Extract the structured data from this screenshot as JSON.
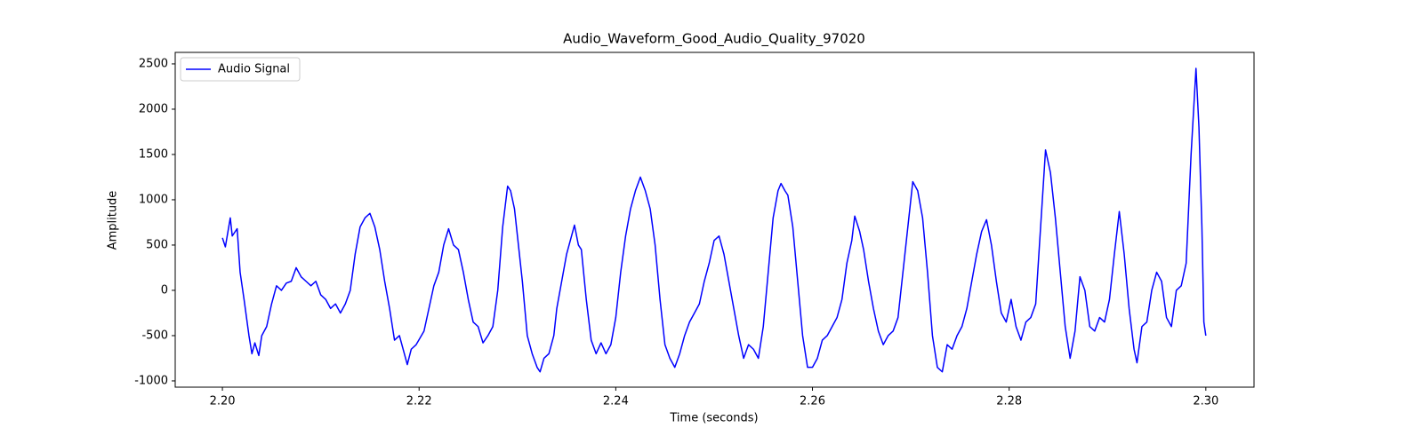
{
  "chart_data": {
    "type": "line",
    "title": "Audio_Waveform_Good_Audio_Quality_97020",
    "x_label": "Time (seconds)",
    "y_label": "Amplitude",
    "x": [
      2.2,
      2.2003,
      2.2008,
      2.201,
      2.2015,
      2.2018,
      2.2022,
      2.2027,
      2.203,
      2.2033,
      2.2037,
      2.204,
      2.2045,
      2.205,
      2.2055,
      2.206,
      2.2065,
      2.207,
      2.2075,
      2.208,
      2.2085,
      2.209,
      2.2095,
      2.21,
      2.2105,
      2.211,
      2.2115,
      2.212,
      2.2125,
      2.213,
      2.2135,
      2.214,
      2.2145,
      2.215,
      2.2155,
      2.216,
      2.2165,
      2.217,
      2.2175,
      2.218,
      2.2185,
      2.2188,
      2.2192,
      2.2197,
      2.2205,
      2.221,
      2.2215,
      2.222,
      2.2225,
      2.223,
      2.2235,
      2.224,
      2.2245,
      2.225,
      2.2255,
      2.226,
      2.2265,
      2.227,
      2.2275,
      2.228,
      2.2285,
      2.229,
      2.2293,
      2.2297,
      2.23,
      2.2305,
      2.231,
      2.2315,
      2.232,
      2.2323,
      2.2327,
      2.2332,
      2.2337,
      2.234,
      2.2345,
      2.235,
      2.2355,
      2.2358,
      2.2362,
      2.2365,
      2.237,
      2.2375,
      2.238,
      2.2385,
      2.239,
      2.2395,
      2.24,
      2.2405,
      2.241,
      2.2415,
      2.242,
      2.2425,
      2.243,
      2.2435,
      2.244,
      2.2445,
      2.245,
      2.2455,
      2.246,
      2.2465,
      2.247,
      2.2475,
      2.248,
      2.2485,
      2.249,
      2.2495,
      2.25,
      2.2505,
      2.251,
      2.2515,
      2.252,
      2.2525,
      2.253,
      2.2535,
      2.254,
      2.2545,
      2.255,
      2.2555,
      2.256,
      2.2565,
      2.2568,
      2.2572,
      2.2575,
      2.258,
      2.2585,
      2.259,
      2.2595,
      2.26,
      2.2605,
      2.261,
      2.2615,
      2.262,
      2.2625,
      2.263,
      2.2635,
      2.264,
      2.2643,
      2.2648,
      2.2652,
      2.2657,
      2.2662,
      2.2667,
      2.2672,
      2.2677,
      2.2682,
      2.2687,
      2.2692,
      2.2697,
      2.2702,
      2.2707,
      2.2712,
      2.2717,
      2.2722,
      2.2727,
      2.2732,
      2.2737,
      2.2742,
      2.2747,
      2.2752,
      2.2757,
      2.2762,
      2.2767,
      2.2772,
      2.2777,
      2.2782,
      2.2787,
      2.2792,
      2.2797,
      2.2802,
      2.2807,
      2.2812,
      2.2817,
      2.2822,
      2.2827,
      2.2832,
      2.2837,
      2.2842,
      2.2847,
      2.2852,
      2.2857,
      2.2862,
      2.2867,
      2.2872,
      2.2877,
      2.2882,
      2.2887,
      2.2892,
      2.2897,
      2.2902,
      2.2907,
      2.2912,
      2.2917,
      2.2922,
      2.2927,
      2.293,
      2.2935,
      2.294,
      2.2945,
      2.295,
      2.2955,
      2.296,
      2.2965,
      2.297,
      2.2975,
      2.298,
      2.2985,
      2.299,
      2.2993,
      2.2996,
      2.2998,
      2.3
    ],
    "series": [
      {
        "name": "Audio Signal",
        "color": "#0000ff",
        "values": [
          580,
          480,
          800,
          600,
          680,
          200,
          -100,
          -500,
          -700,
          -580,
          -720,
          -500,
          -400,
          -150,
          50,
          0,
          80,
          100,
          250,
          150,
          100,
          50,
          100,
          -50,
          -100,
          -200,
          -150,
          -250,
          -150,
          0,
          400,
          700,
          800,
          850,
          700,
          450,
          100,
          -200,
          -550,
          -500,
          -700,
          -820,
          -650,
          -600,
          -450,
          -200,
          50,
          200,
          500,
          680,
          500,
          450,
          200,
          -100,
          -350,
          -400,
          -580,
          -500,
          -400,
          0,
          700,
          1150,
          1100,
          900,
          600,
          100,
          -500,
          -700,
          -850,
          -900,
          -750,
          -700,
          -500,
          -200,
          100,
          400,
          600,
          720,
          500,
          450,
          -100,
          -550,
          -700,
          -580,
          -700,
          -600,
          -300,
          200,
          600,
          900,
          1100,
          1250,
          1100,
          900,
          500,
          -100,
          -600,
          -750,
          -850,
          -700,
          -500,
          -350,
          -250,
          -150,
          100,
          300,
          550,
          600,
          400,
          100,
          -200,
          -500,
          -750,
          -600,
          -650,
          -750,
          -400,
          200,
          800,
          1100,
          1180,
          1100,
          1050,
          700,
          100,
          -500,
          -850,
          -850,
          -750,
          -550,
          -500,
          -400,
          -300,
          -100,
          300,
          550,
          820,
          650,
          450,
          100,
          -200,
          -450,
          -600,
          -500,
          -450,
          -300,
          200,
          700,
          1200,
          1100,
          800,
          200,
          -500,
          -850,
          -900,
          -600,
          -650,
          -500,
          -400,
          -200,
          100,
          400,
          650,
          780,
          500,
          100,
          -250,
          -350,
          -100,
          -400,
          -550,
          -350,
          -300,
          -150,
          700,
          1550,
          1300,
          800,
          200,
          -400,
          -750,
          -450,
          150,
          0,
          -400,
          -450,
          -300,
          -350,
          -100,
          400,
          870,
          400,
          -200,
          -650,
          -800,
          -400,
          -350,
          0,
          200,
          100,
          -300,
          -400,
          0,
          50,
          300,
          1500,
          2450,
          1800,
          700,
          -350,
          -500
        ]
      }
    ],
    "xlim": [
      2.1952,
      2.3049
    ],
    "ylim": [
      -1069,
      2627
    ],
    "xticks": [
      {
        "value": 2.2,
        "label": "2.20"
      },
      {
        "value": 2.22,
        "label": "2.22"
      },
      {
        "value": 2.24,
        "label": "2.24"
      },
      {
        "value": 2.26,
        "label": "2.26"
      },
      {
        "value": 2.28,
        "label": "2.28"
      },
      {
        "value": 2.3,
        "label": "2.30"
      }
    ],
    "yticks": [
      -1000,
      -500,
      0,
      500,
      1000,
      1500,
      2000,
      2500
    ],
    "legend": "upper left",
    "grid": false
  }
}
